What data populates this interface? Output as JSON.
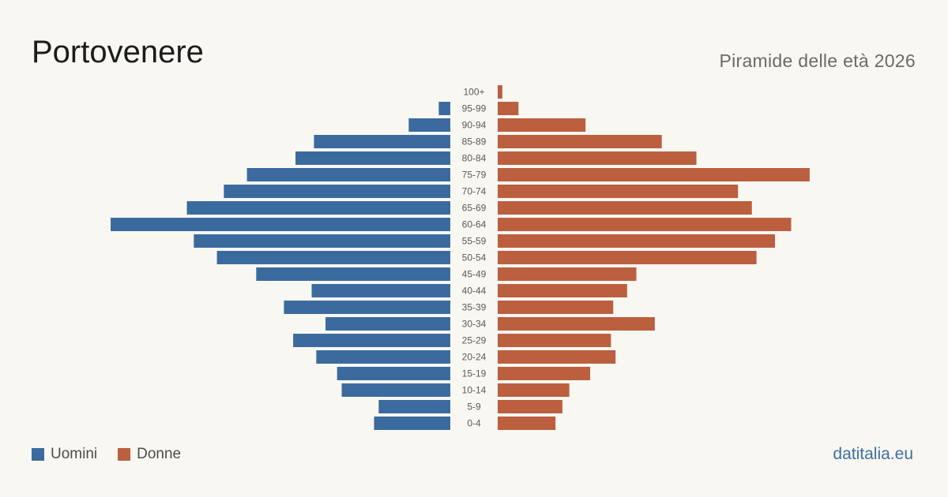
{
  "header": {
    "title": "Portovenere",
    "subtitle": "Piramide delle età 2026"
  },
  "legend": {
    "men_label": "Uomini",
    "women_label": "Donne"
  },
  "footer": {
    "source": "datitalia.eu"
  },
  "colors": {
    "men": "#3b6b9e",
    "women": "#bb5f3e",
    "background": "#f9f7f2",
    "age_label": "#5a5a5a"
  },
  "chart_data": {
    "type": "bar",
    "orientation": "horizontal-population-pyramid",
    "title": "Portovenere",
    "subtitle": "Piramide delle età 2026",
    "categories": [
      "100+",
      "95-99",
      "90-94",
      "85-89",
      "80-84",
      "75-79",
      "70-74",
      "65-69",
      "60-64",
      "55-59",
      "50-54",
      "45-49",
      "40-44",
      "35-39",
      "30-34",
      "25-29",
      "20-24",
      "15-19",
      "10-14",
      "5-9",
      "0-4"
    ],
    "series": [
      {
        "name": "Uomini",
        "values": [
          0,
          5,
          18,
          59,
          67,
          88,
          98,
          114,
          147,
          111,
          101,
          84,
          60,
          72,
          54,
          68,
          58,
          49,
          47,
          31,
          33
        ]
      },
      {
        "name": "Donne",
        "values": [
          2,
          9,
          38,
          71,
          86,
          135,
          104,
          110,
          127,
          120,
          112,
          60,
          56,
          50,
          68,
          49,
          51,
          40,
          31,
          28,
          25
        ]
      }
    ],
    "xlabel": "",
    "ylabel": "",
    "grid": false,
    "legend_position": "bottom-left"
  }
}
